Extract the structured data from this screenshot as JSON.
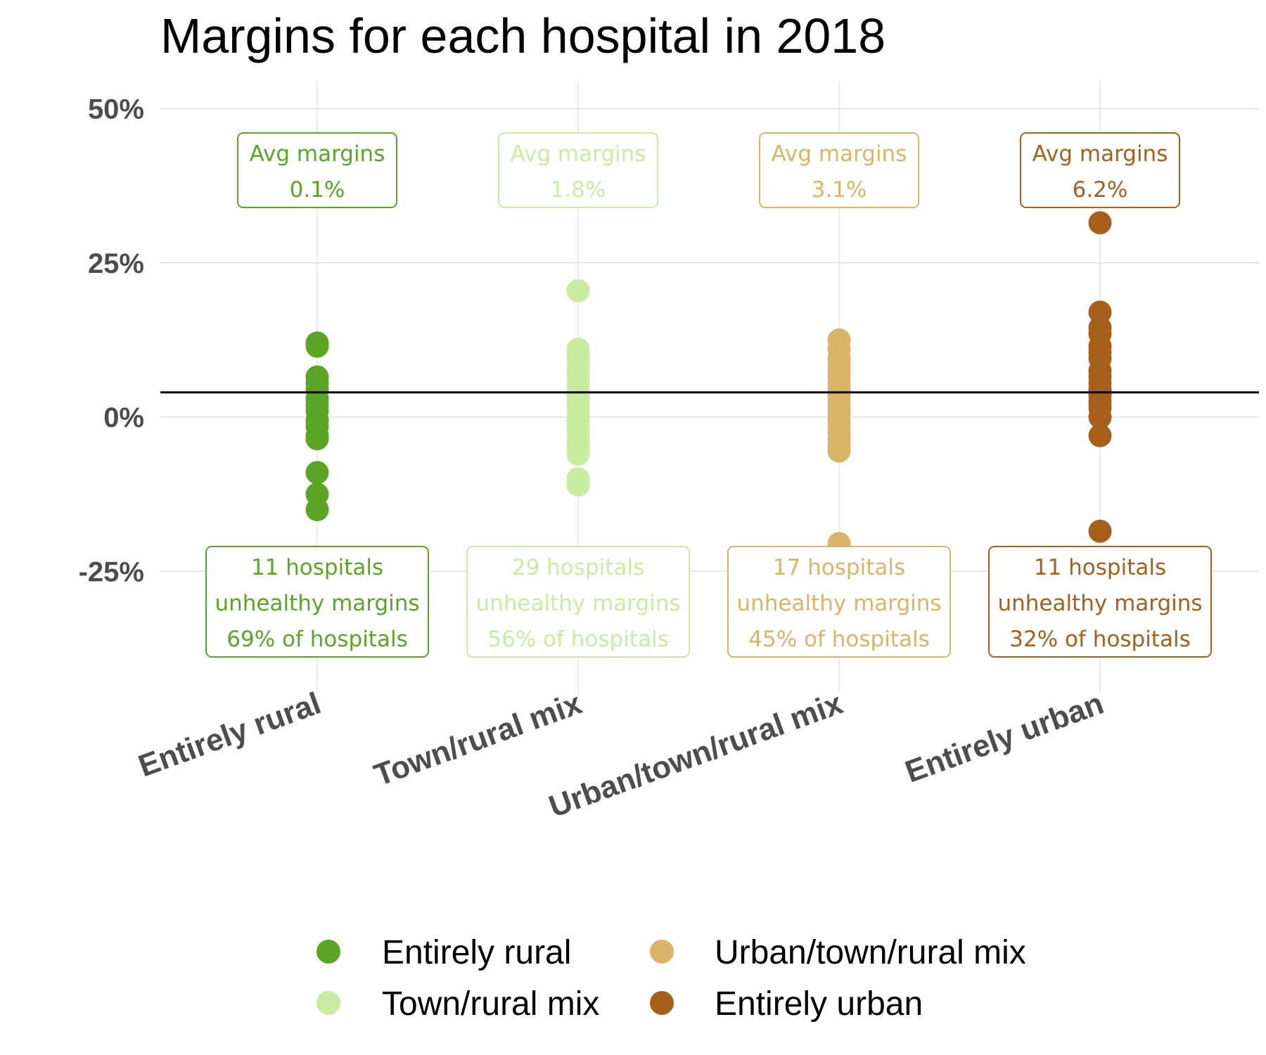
{
  "chart_data": {
    "type": "scatter",
    "title": "Margins for each hospital in 2018",
    "xlabel": "",
    "ylabel": "",
    "categories": [
      "Entirely rural",
      "Town/rural mix",
      "Urban/town/rural mix",
      "Entirely urban"
    ],
    "ylim": [
      -0.43,
      0.55
    ],
    "y_ticks": [
      0.5,
      0.25,
      0,
      -0.25
    ],
    "y_tick_labels": [
      "50%",
      "25%",
      "0%",
      "-25%"
    ],
    "reference_line": 0.04,
    "grid": true,
    "legend_position": "bottom",
    "series": [
      {
        "name": "Entirely rural",
        "color": "#5aa624",
        "values": [
          0.12,
          0.115,
          0.065,
          0.055,
          0.045,
          0.03,
          0.02,
          0.01,
          -0.005,
          -0.015,
          -0.03,
          -0.035,
          -0.09,
          -0.125,
          -0.15
        ],
        "avg_label": "Avg margins",
        "avg_value": "0.1%",
        "count_label": "11 hospitals",
        "status_label": "unhealthy margins",
        "share_label": "69% of hospitals"
      },
      {
        "name": "Town/rural mix",
        "color": "#c8eca0",
        "values": [
          0.205,
          0.11,
          0.1,
          0.09,
          0.08,
          0.07,
          0.06,
          0.05,
          0.04,
          0.03,
          0.02,
          0.01,
          0.0,
          -0.01,
          -0.02,
          -0.03,
          -0.04,
          -0.05,
          -0.06,
          -0.1,
          -0.11
        ],
        "avg_label": "Avg margins",
        "avg_value": "1.8%",
        "count_label": "29 hospitals",
        "status_label": "unhealthy margins",
        "share_label": "56% of hospitals"
      },
      {
        "name": "Urban/town/rural mix",
        "color": "#dcb468",
        "values": [
          0.125,
          0.11,
          0.095,
          0.085,
          0.075,
          0.065,
          0.055,
          0.045,
          0.035,
          0.025,
          0.015,
          0.005,
          -0.005,
          -0.015,
          -0.025,
          -0.035,
          -0.045,
          -0.055,
          -0.205
        ],
        "avg_label": "Avg margins",
        "avg_value": "3.1%",
        "count_label": "17 hospitals",
        "status_label": "unhealthy margins",
        "share_label": "45% of hospitals"
      },
      {
        "name": "Entirely urban",
        "color": "#a6601c",
        "values": [
          0.315,
          0.17,
          0.145,
          0.135,
          0.115,
          0.105,
          0.095,
          0.075,
          0.065,
          0.055,
          0.045,
          0.035,
          0.025,
          0.015,
          0.0,
          -0.03,
          -0.185
        ],
        "avg_label": "Avg margins",
        "avg_value": "6.2%",
        "count_label": "11 hospitals",
        "status_label": "unhealthy margins",
        "share_label": "32% of hospitals"
      }
    ]
  }
}
